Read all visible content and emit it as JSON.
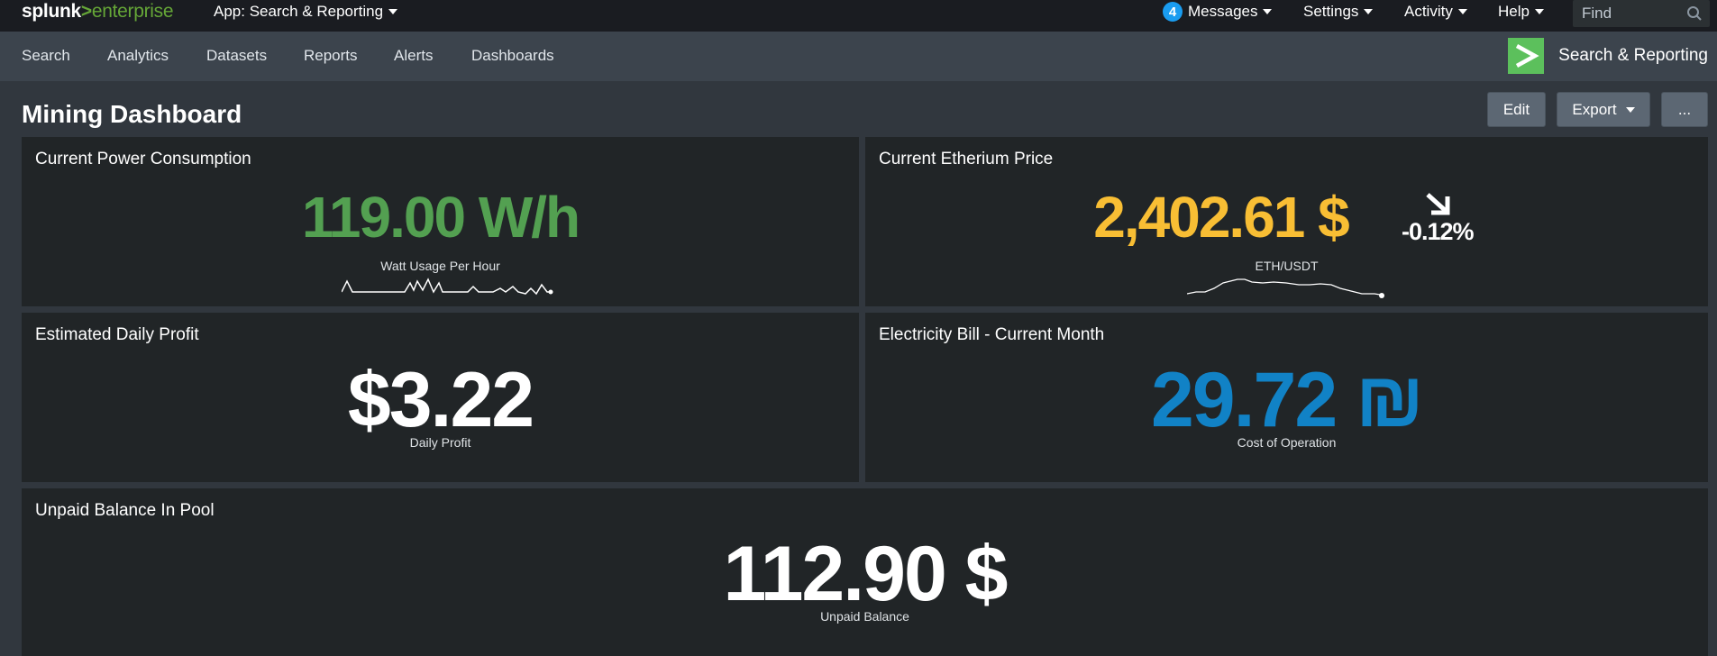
{
  "topbar": {
    "logo": {
      "part1": "splunk",
      "part2": ">",
      "part3": "enterprise"
    },
    "app_menu": "App: Search & Reporting",
    "messages_count": "4",
    "messages_label": "Messages",
    "settings_label": "Settings",
    "activity_label": "Activity",
    "help_label": "Help",
    "find_placeholder": "Find"
  },
  "nav": {
    "items": [
      "Search",
      "Analytics",
      "Datasets",
      "Reports",
      "Alerts",
      "Dashboards"
    ],
    "app_title": "Search & Reporting"
  },
  "dashboard": {
    "title": "Mining Dashboard",
    "edit_label": "Edit",
    "export_label": "Export",
    "more_label": "..."
  },
  "panels": {
    "power": {
      "title": "Current Power Consumption",
      "value": "119.00 W/h",
      "label": "Watt Usage Per Hour",
      "color": "#53a051"
    },
    "eth": {
      "title": "Current Etherium Price",
      "value": "2,402.61 $",
      "label": "ETH/USDT",
      "trend": "-0.12%",
      "color": "#f8be34"
    },
    "profit": {
      "title": "Estimated Daily Profit",
      "value": "$3.22",
      "label": "Daily Profit",
      "color": "#ffffff"
    },
    "bill": {
      "title": "Electricity Bill - Current Month",
      "value": "29.72 ₪",
      "label": "Cost of Operation",
      "color": "#1182c6"
    },
    "balance": {
      "title": "Unpaid Balance In Pool",
      "value": "112.90 $",
      "label": "Unpaid Balance",
      "color": "#ffffff"
    }
  },
  "colors": {
    "topbar_bg": "#1a1c21",
    "navbar_bg": "#3c444d",
    "dashboard_bg": "#31373e",
    "panel_bg": "#212527",
    "accent_green": "#65a637"
  }
}
